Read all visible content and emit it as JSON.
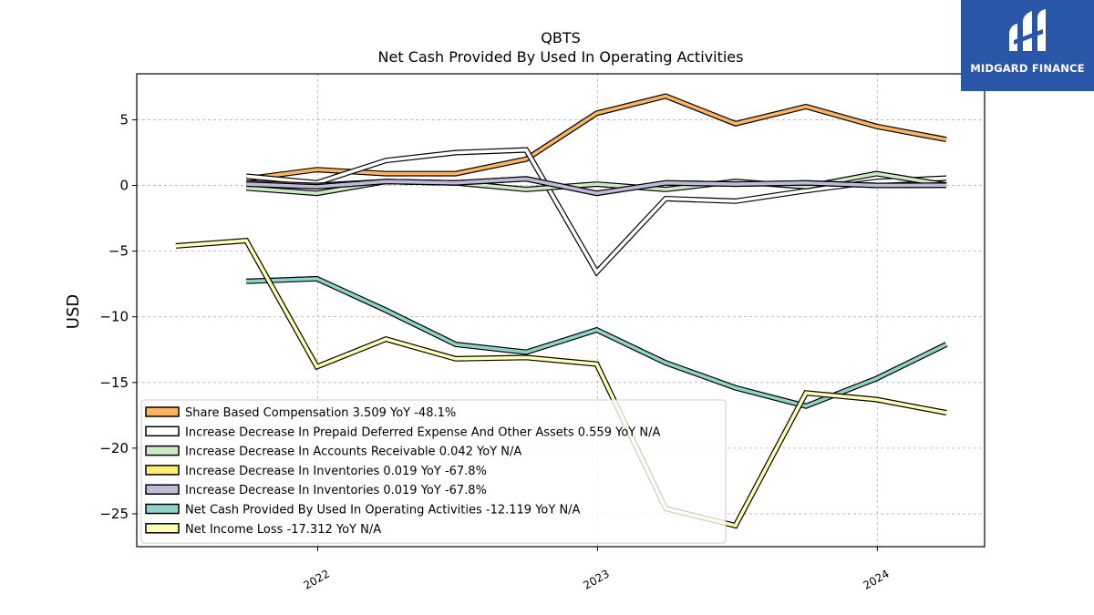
{
  "brand": {
    "name": "MIDGARD FINANCE",
    "bg_color": "#2a56a8"
  },
  "chart_data": {
    "type": "line",
    "title": "QBTS",
    "subtitle": "Net Cash Provided By Used In Operating Activities",
    "xlabel": "",
    "ylabel": "USD",
    "x_ticks": [
      "2022",
      "2023",
      "2024"
    ],
    "y_ticks": [
      5,
      0,
      -5,
      -10,
      -15,
      -20,
      -25
    ],
    "xlim": [
      "2021-05-10",
      "2024-05-20"
    ],
    "ylim": [
      -27.5,
      8.5
    ],
    "grid": true,
    "legend_position": "lower-left",
    "x": [
      "2021-06-30",
      "2021-09-30",
      "2021-12-31",
      "2022-03-31",
      "2022-06-30",
      "2022-09-30",
      "2022-12-31",
      "2023-03-31",
      "2023-06-30",
      "2023-09-30",
      "2023-12-31",
      "2024-03-31"
    ],
    "series": [
      {
        "name": "Share Based Compensation",
        "legend": "Share Based Compensation  3.509 YoY -48.1%",
        "color": "#fdb462",
        "values": [
          null,
          0.5,
          1.2,
          0.9,
          0.9,
          2.0,
          5.5,
          6.8,
          4.7,
          6.0,
          4.5,
          3.5
        ]
      },
      {
        "name": "Increase Decrease In Prepaid Deferred Expense And Other Assets",
        "legend": "Increase Decrease In Prepaid Deferred Expense And Other Assets  0.559 YoY N/A",
        "color": "#ffffff",
        "values": [
          null,
          0.7,
          0.2,
          1.9,
          2.5,
          2.7,
          -6.6,
          -1.0,
          -1.2,
          -0.4,
          0.3,
          0.56
        ]
      },
      {
        "name": "Increase Decrease In Accounts Receivable",
        "legend": "Increase Decrease In Accounts Receivable  0.042 YoY N/A",
        "color": "#ccebc5",
        "values": [
          null,
          -0.2,
          -0.6,
          0.3,
          0.2,
          -0.3,
          0.1,
          -0.3,
          0.3,
          -0.1,
          0.9,
          0.04
        ]
      },
      {
        "name": "Increase Decrease In Inventories",
        "legend": "Increase Decrease In Inventories  0.019 YoY -67.8%",
        "color": "#ffed6f",
        "values": [
          null,
          0.2,
          0.0,
          0.3,
          0.2,
          0.5,
          -0.6,
          0.2,
          0.1,
          0.2,
          0.0,
          0.02
        ]
      },
      {
        "name": "Increase Decrease In Inventories",
        "legend": "Increase Decrease In Inventories  0.019 YoY -67.8%",
        "color": "#bebada",
        "values": [
          null,
          0.1,
          -0.1,
          0.3,
          0.2,
          0.5,
          -0.6,
          0.2,
          0.1,
          0.2,
          0.0,
          0.02
        ]
      },
      {
        "name": "Net Cash Provided By Used In Operating Activities",
        "legend": "Net Cash Provided By Used In Operating Activities  -12.119 YoY N/A",
        "color": "#8dd3c7",
        "values": [
          null,
          -7.3,
          -7.1,
          -9.5,
          -12.1,
          -12.7,
          -11.0,
          -13.5,
          -15.4,
          -16.8,
          -14.7,
          -12.1
        ]
      },
      {
        "name": "Net Income Loss",
        "legend": "Net Income Loss  -17.312 YoY N/A",
        "color": "#ffffb3",
        "values": [
          -4.6,
          -4.2,
          -13.8,
          -11.7,
          -13.2,
          -13.1,
          -13.6,
          -24.6,
          -25.9,
          -15.8,
          -16.3,
          -17.3
        ]
      }
    ]
  }
}
